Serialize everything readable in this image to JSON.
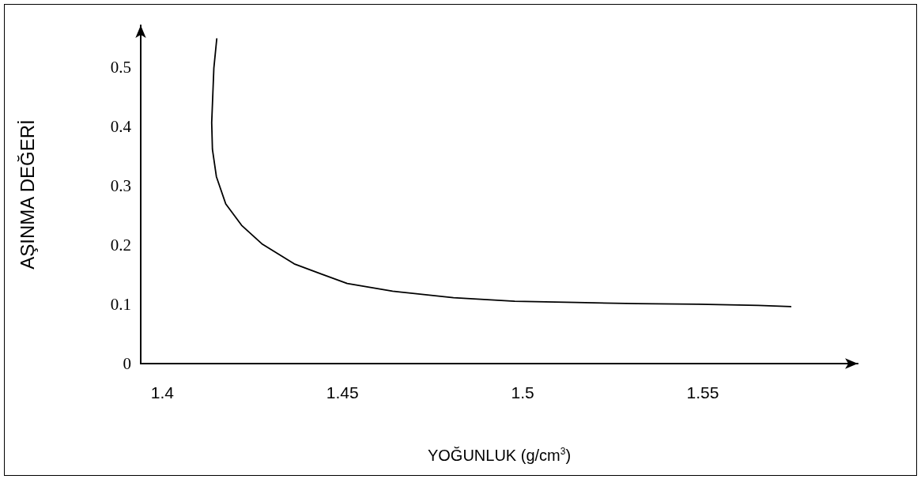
{
  "chart_data": {
    "type": "line",
    "xlabel": "YOĞUNLUK (g/cm$^{3}$)",
    "ylabel": "AŞINMA DEĞERİ",
    "x": [
      1.4151,
      1.4143,
      1.4137,
      1.4139,
      1.415,
      1.4176,
      1.422,
      1.4278,
      1.4366,
      1.4441,
      1.4513,
      1.4639,
      1.4808,
      1.4978,
      1.5148,
      1.5317,
      1.5487,
      1.5654,
      1.5744
    ],
    "values": [
      0.547,
      0.498,
      0.406,
      0.361,
      0.315,
      0.269,
      0.233,
      0.201,
      0.168,
      0.151,
      0.135,
      0.122,
      0.111,
      0.105,
      0.103,
      0.101,
      0.1,
      0.098,
      0.096
    ],
    "color": "#000000",
    "marker": "none",
    "line_style": "solid",
    "xlim": [
      1.394,
      1.593
    ],
    "ylim": [
      0,
      0.57
    ],
    "xticks": [
      1.4,
      1.45,
      1.5,
      1.55
    ],
    "yticks": [
      0,
      0.1,
      0.2,
      0.3,
      0.4,
      0.5
    ]
  }
}
